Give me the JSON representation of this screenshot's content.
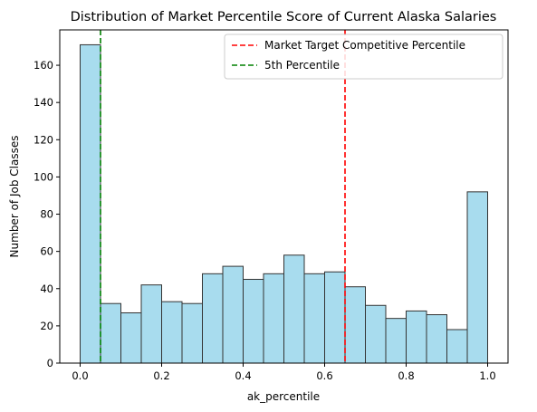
{
  "chart_data": {
    "type": "histogram",
    "title": "Distribution of Market Percentile Score of Current Alaska Salaries",
    "xlabel": "ak_percentile",
    "ylabel": "Number of Job Classes",
    "xlim": [
      -0.05,
      1.05
    ],
    "ylim": [
      0,
      179
    ],
    "xticks": [
      0.0,
      0.2,
      0.4,
      0.6,
      0.8,
      1.0
    ],
    "xtick_labels": [
      "0.0",
      "0.2",
      "0.4",
      "0.6",
      "0.8",
      "1.0"
    ],
    "yticks": [
      0,
      20,
      40,
      60,
      80,
      100,
      120,
      140,
      160
    ],
    "ytick_labels": [
      "0",
      "20",
      "40",
      "60",
      "80",
      "100",
      "120",
      "140",
      "160"
    ],
    "bins": [
      0.0,
      0.05,
      0.1,
      0.15,
      0.2,
      0.25,
      0.3,
      0.35,
      0.4,
      0.45,
      0.5,
      0.55,
      0.6,
      0.65,
      0.7,
      0.75,
      0.8,
      0.85,
      0.9,
      0.95,
      1.0
    ],
    "values": [
      171,
      32,
      27,
      42,
      33,
      32,
      48,
      52,
      45,
      48,
      58,
      48,
      49,
      41,
      31,
      24,
      28,
      26,
      18,
      92
    ],
    "bar_color": "#a8dcee",
    "bar_edge_color": "#333333",
    "vlines": [
      {
        "x": 0.65,
        "color": "#ff0000",
        "label": "Market Target Competitive Percentile"
      },
      {
        "x": 0.05,
        "color": "#008000",
        "label": "5th Percentile"
      }
    ],
    "legend": {
      "placement": "top-right",
      "entries": [
        "Market Target Competitive Percentile",
        "5th Percentile"
      ]
    },
    "grid": false
  }
}
